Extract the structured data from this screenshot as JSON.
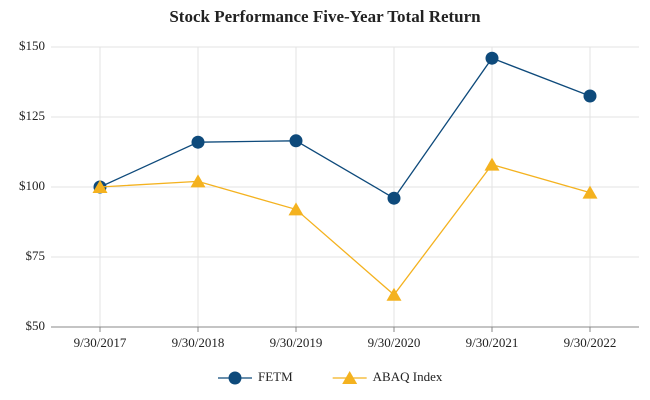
{
  "chart_data": {
    "type": "line",
    "title": "Stock Performance Five-Year Total Return",
    "categories": [
      "9/30/2017",
      "9/30/2018",
      "9/30/2019",
      "9/30/2020",
      "9/30/2021",
      "9/30/2022"
    ],
    "series": [
      {
        "name": "FETM",
        "color": "#0e4a7b",
        "marker": "circle",
        "values": [
          100,
          116,
          116.5,
          96,
          146,
          132.5
        ]
      },
      {
        "name": "ABAQ Index",
        "color": "#f4b21f",
        "marker": "triangle",
        "values": [
          100,
          102,
          92,
          61.5,
          108,
          98
        ]
      }
    ],
    "ylim": [
      50,
      150
    ],
    "yticks": [
      {
        "value": 50,
        "label": "$50"
      },
      {
        "value": 75,
        "label": "$75"
      },
      {
        "value": 100,
        "label": "$100"
      },
      {
        "value": 125,
        "label": "$125"
      },
      {
        "value": 150,
        "label": "$150"
      }
    ],
    "grid": true,
    "legend": "bottom"
  }
}
